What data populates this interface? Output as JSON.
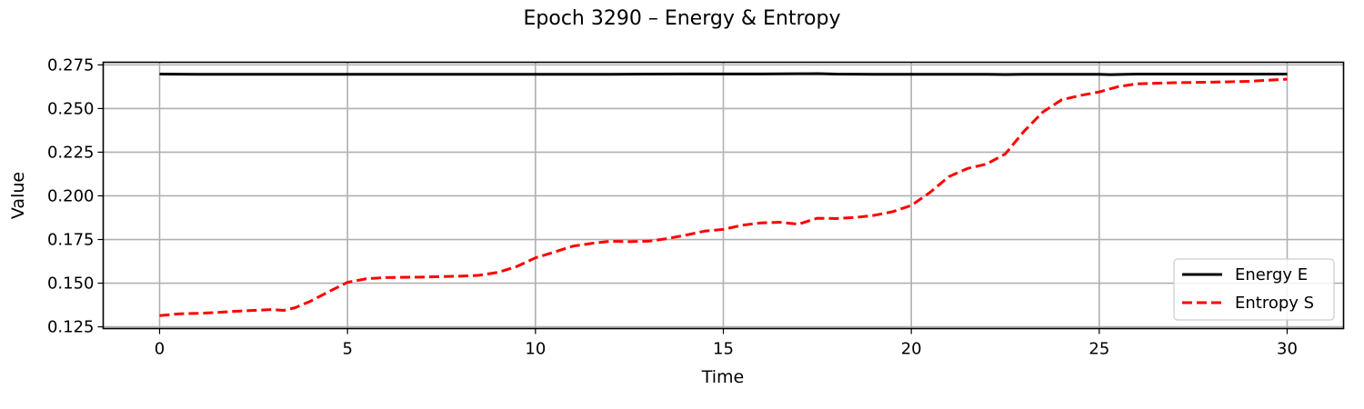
{
  "chart_data": {
    "type": "line",
    "title": "Epoch 3290 – Energy & Entropy",
    "xlabel": "Time",
    "ylabel": "Value",
    "xlim": [
      -1.5,
      31.5
    ],
    "ylim": [
      0.124,
      0.2765
    ],
    "xticks": [
      0,
      5,
      10,
      15,
      20,
      25,
      30
    ],
    "xtick_labels": [
      "0",
      "5",
      "10",
      "15",
      "20",
      "25",
      "30"
    ],
    "yticks": [
      0.125,
      0.15,
      0.175,
      0.2,
      0.225,
      0.25,
      0.275
    ],
    "ytick_labels": [
      "0.125",
      "0.150",
      "0.175",
      "0.200",
      "0.225",
      "0.250",
      "0.275"
    ],
    "grid": true,
    "legend_position": "lower-right",
    "series": [
      {
        "name": "Energy E",
        "color": "#000000",
        "style": "solid",
        "x": [
          0,
          1,
          2,
          3,
          4,
          5,
          6,
          7,
          8,
          9,
          10,
          11,
          12,
          13,
          14,
          15,
          16,
          17,
          17.5,
          18,
          19,
          20,
          21,
          22,
          22.5,
          23,
          24,
          25,
          25.3,
          26,
          27,
          28,
          29,
          30
        ],
        "y": [
          0.2697,
          0.2696,
          0.2696,
          0.2696,
          0.2696,
          0.2696,
          0.2696,
          0.2696,
          0.2696,
          0.2696,
          0.2696,
          0.2696,
          0.2696,
          0.2697,
          0.2698,
          0.2698,
          0.2698,
          0.2699,
          0.27,
          0.2697,
          0.2696,
          0.2696,
          0.2696,
          0.2696,
          0.2695,
          0.2696,
          0.2696,
          0.2696,
          0.2694,
          0.2697,
          0.2697,
          0.2697,
          0.2697,
          0.2697
        ]
      },
      {
        "name": "Entropy S",
        "color": "#ff0000",
        "style": "dashed",
        "x": [
          0,
          0.5,
          1,
          1.5,
          2,
          2.5,
          3,
          3.3,
          3.6,
          4,
          4.5,
          5,
          5.5,
          6,
          7,
          8,
          8.5,
          9,
          9.5,
          10,
          10.5,
          11,
          11.5,
          12,
          12.5,
          13,
          13.5,
          14,
          14.5,
          15,
          15.5,
          16,
          16.5,
          17,
          17.5,
          18,
          18.5,
          19,
          19.5,
          20,
          20.5,
          21,
          21.5,
          22,
          22.5,
          23,
          23.5,
          24,
          24.5,
          25,
          25.5,
          26,
          27,
          28,
          29,
          30
        ],
        "y": [
          0.1314,
          0.1324,
          0.1327,
          0.1332,
          0.1339,
          0.1344,
          0.1349,
          0.1344,
          0.1359,
          0.1395,
          0.1451,
          0.1505,
          0.1525,
          0.1532,
          0.1535,
          0.154,
          0.1545,
          0.1562,
          0.1595,
          0.1645,
          0.1678,
          0.1712,
          0.1728,
          0.174,
          0.1738,
          0.174,
          0.1755,
          0.1775,
          0.1798,
          0.1808,
          0.1832,
          0.1845,
          0.1849,
          0.1838,
          0.1872,
          0.187,
          0.1876,
          0.1888,
          0.1909,
          0.1945,
          0.202,
          0.211,
          0.2157,
          0.2182,
          0.224,
          0.237,
          0.248,
          0.255,
          0.2575,
          0.2595,
          0.2625,
          0.2641,
          0.2648,
          0.2651,
          0.2656,
          0.2668
        ]
      }
    ]
  }
}
